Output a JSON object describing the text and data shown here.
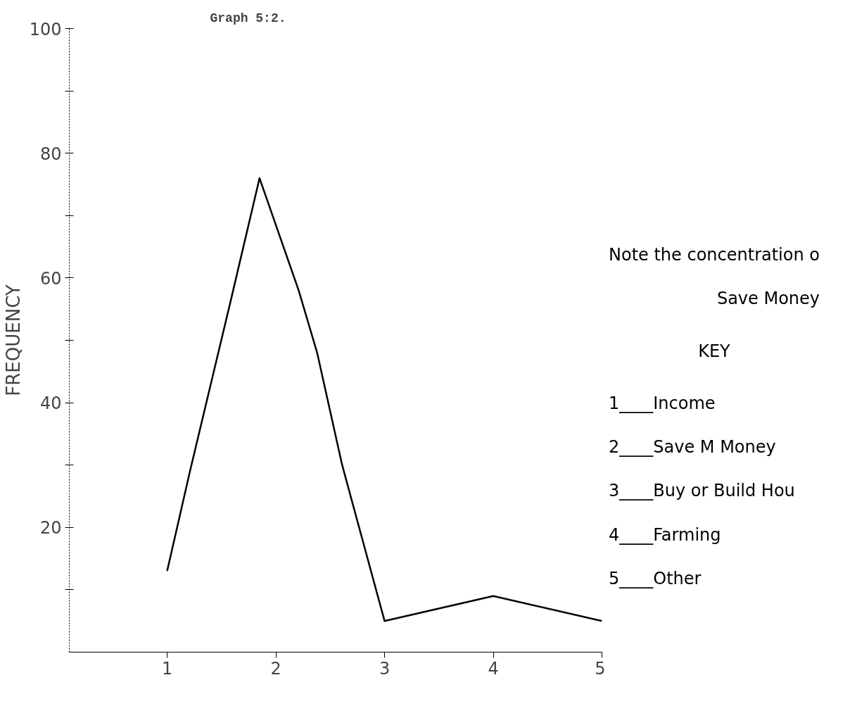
{
  "chart_data": {
    "type": "line",
    "title": "Graph 5:2.",
    "ylabel": "FREQUENCY",
    "x": [
      1,
      1.21,
      1.58,
      1.85,
      2.21,
      2.38,
      2.61,
      3,
      4,
      5
    ],
    "series": [
      {
        "color": "#000000",
        "values": [
          13,
          29,
          56,
          76,
          58,
          48,
          30,
          5,
          9,
          5
        ]
      }
    ],
    "xlim": [
      0.1,
      5
    ],
    "xticks": [
      1,
      2,
      3,
      4,
      5
    ],
    "ylim": [
      0,
      100
    ],
    "yticks": [
      {
        "value": 10,
        "label": null
      },
      20,
      {
        "value": 30,
        "label": null
      },
      40,
      {
        "value": 50,
        "label": null
      },
      60,
      {
        "value": 70,
        "label": null
      },
      80,
      {
        "value": 90,
        "label": null
      },
      100
    ],
    "grid": false,
    "marker": "none",
    "line_style": "solid",
    "annotations": [
      "Note the concentration o",
      "Save Money",
      "KEY",
      "1____Income",
      "2____Save M Money",
      "3____Buy or Build Hou",
      "4____Farming",
      "5____Other"
    ]
  }
}
